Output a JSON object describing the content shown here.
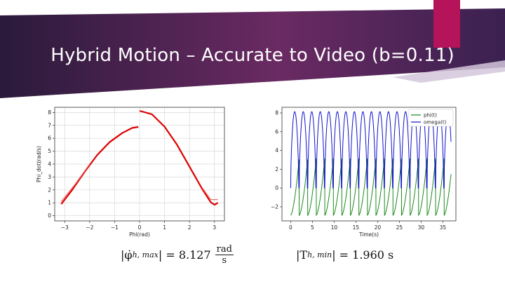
{
  "slide": {
    "title": "Hybrid Motion – Accurate to Video (b=0.11)",
    "colors": {
      "banner_dark": "#2c1a3c",
      "banner_mid": "#6b2a63",
      "accent_tab": "#b5145a",
      "light_band": "#d4c6dc"
    }
  },
  "equations": {
    "left_lhs": "|φ̇",
    "left_sub": "h, max",
    "left_mid": "| = 8.127",
    "left_num": "rad",
    "left_den": "s",
    "right_lhs": "|T",
    "right_sub": "h, min",
    "right_rest": "| = 1.960 s"
  },
  "chart_data": [
    {
      "type": "line",
      "xlabel": "Phi(rad)",
      "ylabel": "Phi_dot(rad/s)",
      "xlim": [
        -3.4,
        3.4
      ],
      "ylim": [
        -0.4,
        8.4
      ],
      "xticks": [
        -3,
        -2,
        -1,
        0,
        1,
        2,
        3
      ],
      "yticks": [
        0,
        1,
        2,
        3,
        4,
        5,
        6,
        7,
        8
      ],
      "grid": true,
      "series": [
        {
          "color": "#dd0000",
          "x": [
            -3.14,
            -2.7,
            -2.2,
            -1.7,
            -1.2,
            -0.7,
            -0.3,
            -0.05
          ],
          "y": [
            0.9,
            2.0,
            3.4,
            4.7,
            5.7,
            6.4,
            6.8,
            6.88
          ]
        },
        {
          "color": "#dd0000",
          "x": [
            0.0,
            0.5,
            1.0,
            1.5,
            2.0,
            2.5,
            2.85,
            3.0,
            3.14
          ],
          "y": [
            8.13,
            7.85,
            6.9,
            5.5,
            3.8,
            2.1,
            1.05,
            0.85,
            1.0
          ]
        },
        {
          "color": "#f07070",
          "x": [
            -3.14,
            -2.6,
            -2.0
          ],
          "y": [
            1.1,
            2.4,
            4.0
          ]
        },
        {
          "color": "#f07070",
          "x": [
            2.5,
            2.85,
            3.14
          ],
          "y": [
            2.2,
            1.25,
            1.25
          ]
        }
      ]
    },
    {
      "type": "line",
      "xlabel": "Time(s)",
      "xlim": [
        -2,
        38
      ],
      "ylim": [
        -3.5,
        8.6
      ],
      "xticks": [
        0,
        5,
        10,
        15,
        20,
        25,
        30,
        35
      ],
      "yticks": [
        -2,
        0,
        2,
        4,
        6,
        8
      ],
      "grid": false,
      "legend_position": "top-right",
      "period": 1.96,
      "t_end": 36.9,
      "series": [
        {
          "name": "phi(t)",
          "color": "#1a8a1a",
          "min": -2.9,
          "max": 3.14
        },
        {
          "name": "omega(t)",
          "color": "#1010cc",
          "min": 0.0,
          "max": 8.13
        }
      ]
    }
  ]
}
